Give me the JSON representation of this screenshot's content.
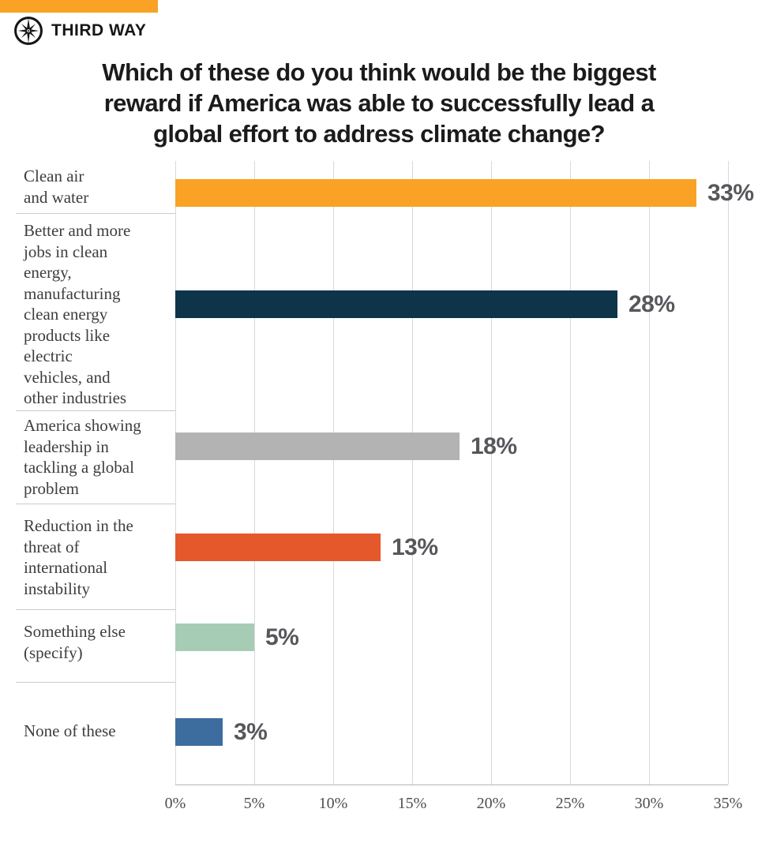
{
  "brand": {
    "name": "THIRD WAY",
    "accent_color": "#F9A226",
    "logo_icon": "compass-star-icon"
  },
  "header": {
    "title_lines": [
      "Which of these do you think would be the biggest",
      "reward if America was able to successfully lead a",
      "global effort to address climate change?"
    ]
  },
  "chart_data": {
    "type": "bar",
    "orientation": "horizontal",
    "title": "Which of these do you think would be the biggest reward if America was able to successfully lead a global effort to address climate change?",
    "categories": [
      "Clean air and water",
      "Better and more jobs in clean energy, manufacturing clean energy products like electric vehicles, and other industries",
      "America showing leadership in tackling a global problem",
      "Reduction in the threat of international instability",
      "Something else (specify)",
      "None of these"
    ],
    "categories_wrapped": [
      "Clean air\nand water",
      "Better and more\njobs in clean\nenergy,\nmanufacturing\nclean energy\nproducts like\nelectric\nvehicles, and\nother industries",
      "America showing\nleadership in\ntackling a global\nproblem",
      "Reduction in the\nthreat of\ninternational\ninstability",
      "Something else\n(specify)",
      "None of these"
    ],
    "values": [
      33,
      28,
      18,
      13,
      5,
      3
    ],
    "value_labels": [
      "33%",
      "28%",
      "18%",
      "13%",
      "5%",
      "3%"
    ],
    "bar_colors": [
      "#F9A226",
      "#0D3449",
      "#B3B3B3",
      "#E4582B",
      "#A7CCB5",
      "#3D6C9F"
    ],
    "value_label_color": "#56575B",
    "x_ticks": [
      "0%",
      "5%",
      "10%",
      "15%",
      "20%",
      "25%",
      "30%",
      "35%"
    ],
    "xlim": [
      0,
      35
    ],
    "grid": true,
    "legend_position": "none"
  }
}
